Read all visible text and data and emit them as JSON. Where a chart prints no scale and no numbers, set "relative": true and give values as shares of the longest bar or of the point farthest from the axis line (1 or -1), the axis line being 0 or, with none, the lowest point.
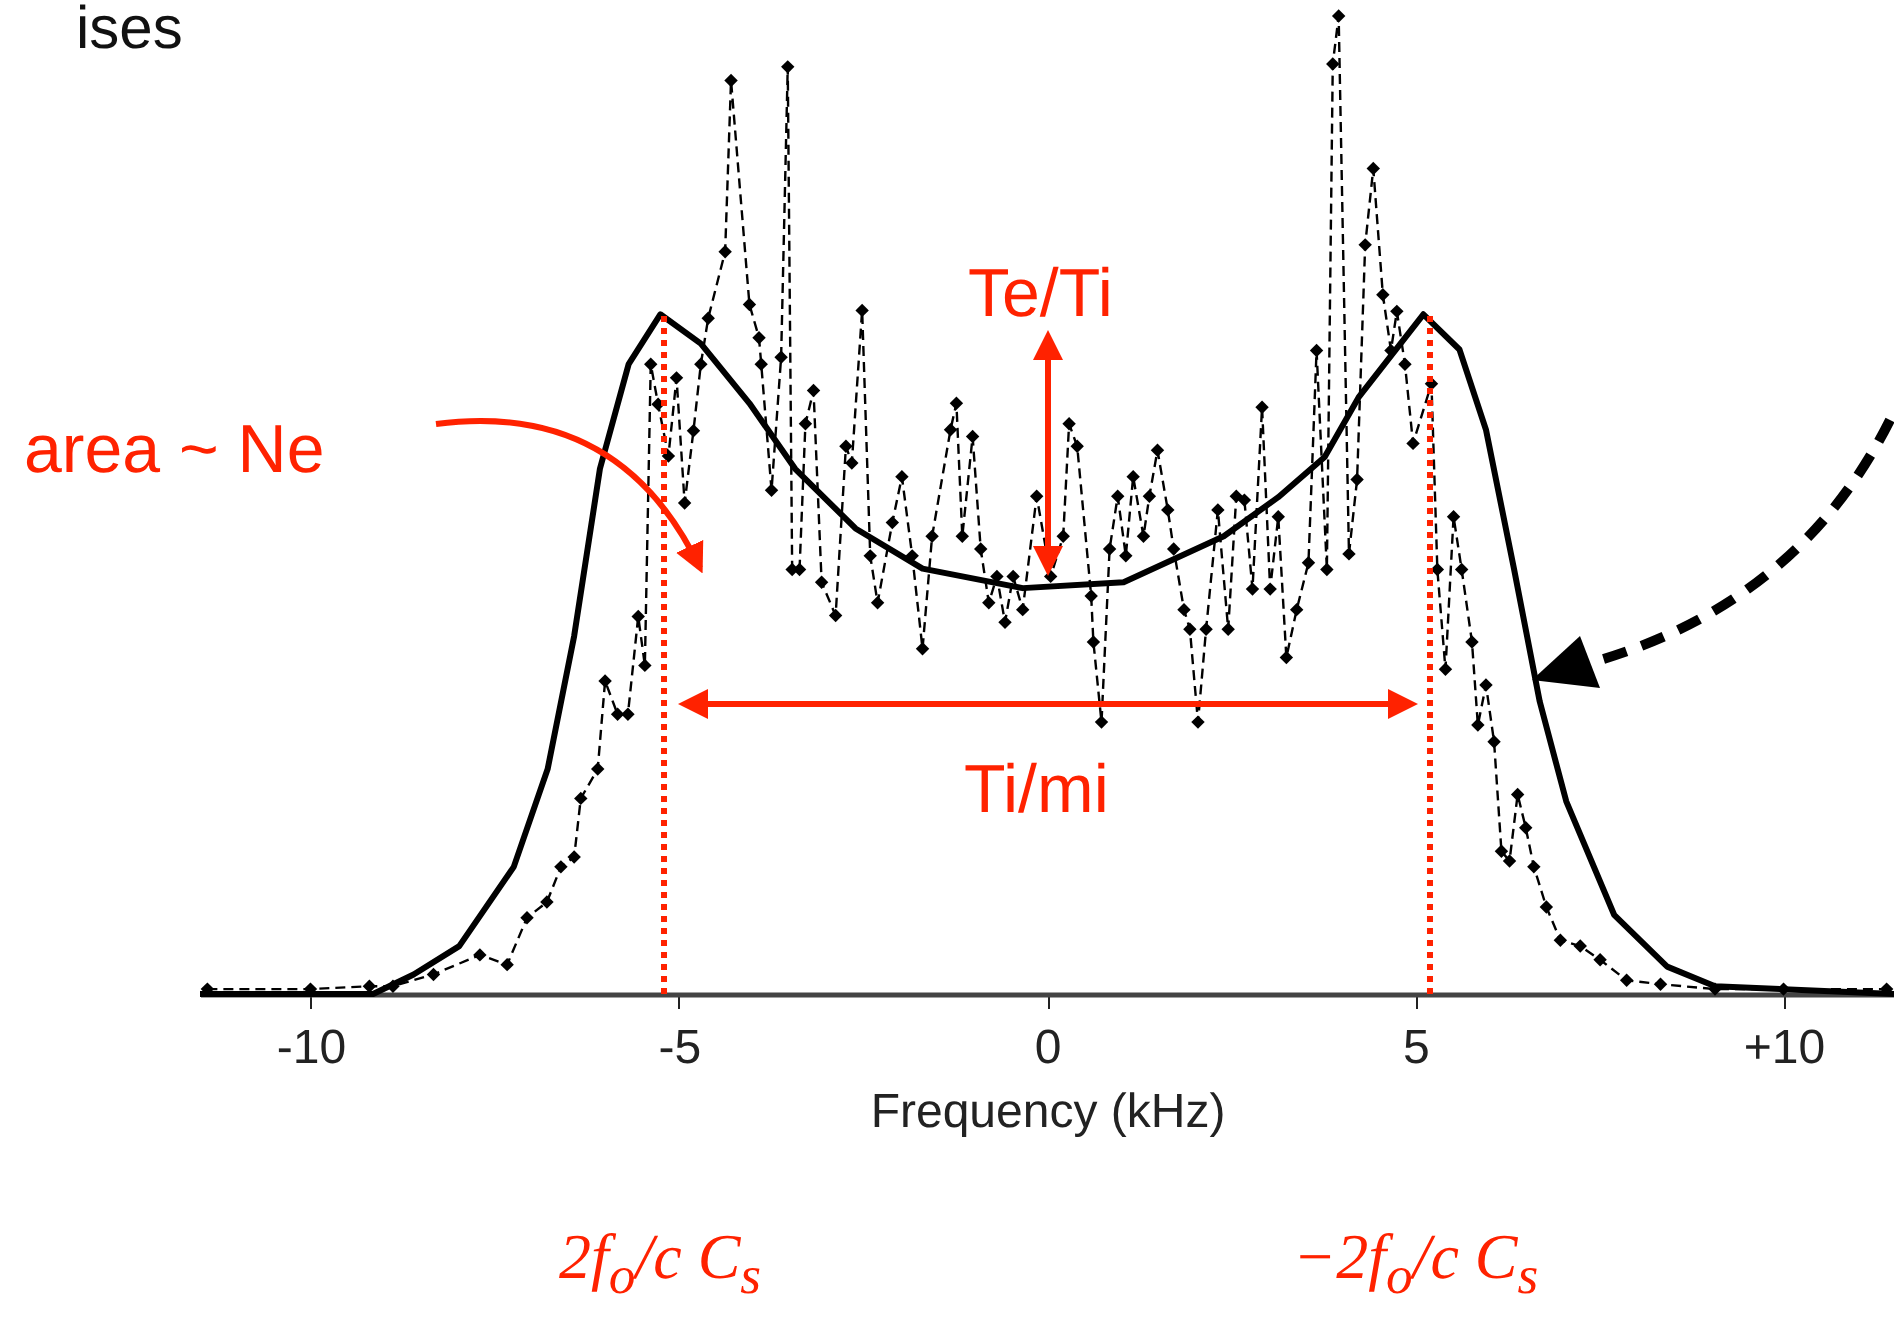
{
  "chart_data": {
    "type": "line",
    "xlabel": "Frequency (kHz)",
    "relative": true,
    "xlim": [
      -11.5,
      11.5
    ],
    "xticks": [
      -10,
      -5,
      0,
      5,
      {
        "value": 10,
        "label": "+10"
      }
    ],
    "tick_labels": "x",
    "grid": false,
    "series": [
      {
        "color": "#000000",
        "marker": "none",
        "line_style": "solid",
        "x": [
          -11.5,
          -9.15,
          -8.6,
          -7.98,
          -7.24,
          -6.78,
          -6.42,
          -6.07,
          -5.68,
          -5.25,
          -4.7,
          -4.04,
          -3.42,
          -2.6,
          -1.69,
          -0.33,
          1.04,
          2.4,
          3.14,
          3.77,
          4.23,
          5.11,
          5.6,
          5.96,
          6.34,
          6.69,
          7.05,
          7.7,
          8.42,
          9.07,
          11.5
        ],
        "values": [
          0,
          0,
          0.02,
          0.049,
          0.13,
          0.23,
          0.366,
          0.537,
          0.644,
          0.695,
          0.665,
          0.604,
          0.537,
          0.476,
          0.435,
          0.415,
          0.421,
          0.468,
          0.508,
          0.549,
          0.61,
          0.695,
          0.659,
          0.577,
          0.435,
          0.299,
          0.197,
          0.081,
          0.028,
          0.008,
          0
        ]
      },
      {
        "color": "#000000",
        "marker": "diamond",
        "line_style": "dashed",
        "x": [
          -11.4,
          -10,
          -9.2,
          -8.88,
          -8.33,
          -7.7,
          -7.33,
          -7.06,
          -6.79,
          -6.6,
          -6.42,
          -6.33,
          -6.1,
          -6.0,
          -5.83,
          -5.69,
          -5.55,
          -5.46,
          -5.38,
          -5.28,
          -5.14,
          -5.03,
          -4.92,
          -4.8,
          -4.7,
          -4.6,
          -4.37,
          -4.29,
          -4.04,
          -3.91,
          -3.88,
          -3.74,
          -3.61,
          -3.52,
          -3.46,
          -3.36,
          -3.28,
          -3.17,
          -3.06,
          -2.87,
          -2.73,
          -2.65,
          -2.51,
          -2.4,
          -2.3,
          -2.1,
          -1.97,
          -1.83,
          -1.69,
          -1.56,
          -1.31,
          -1.23,
          -1.15,
          -1.01,
          -0.9,
          -0.79,
          -0.68,
          -0.57,
          -0.46,
          -0.33,
          -0.14,
          0.05,
          0.22,
          0.3,
          0.41,
          0.6,
          0.63,
          0.74,
          0.85,
          0.96,
          1.07,
          1.17,
          1.31,
          1.39,
          1.5,
          1.64,
          1.72,
          1.86,
          1.94,
          2.05,
          2.16,
          2.32,
          2.46,
          2.57,
          2.68,
          2.79,
          2.92,
          3.03,
          3.14,
          3.25,
          3.39,
          3.55,
          3.66,
          3.8,
          3.88,
          3.96,
          4.1,
          4.21,
          4.32,
          4.43,
          4.56,
          4.67,
          4.75,
          4.86,
          4.97,
          5.22,
          5.3,
          5.41,
          5.52,
          5.63,
          5.77,
          5.85,
          5.96,
          6.07,
          6.17,
          6.28,
          6.39,
          6.5,
          6.61,
          6.78,
          6.97,
          7.24,
          7.51,
          7.87,
          8.33,
          9.07,
          10,
          11.4
        ],
        "values": [
          0.005,
          0.005,
          0.008,
          0.008,
          0.02,
          0.04,
          0.03,
          0.078,
          0.094,
          0.13,
          0.14,
          0.2,
          0.23,
          0.32,
          0.286,
          0.286,
          0.386,
          0.336,
          0.644,
          0.603,
          0.55,
          0.63,
          0.502,
          0.576,
          0.644,
          0.691,
          0.759,
          0.934,
          0.705,
          0.671,
          0.644,
          0.515,
          0.651,
          0.948,
          0.434,
          0.434,
          0.583,
          0.617,
          0.421,
          0.387,
          0.56,
          0.543,
          0.699,
          0.448,
          0.4,
          0.482,
          0.529,
          0.448,
          0.353,
          0.468,
          0.577,
          0.604,
          0.468,
          0.57,
          0.455,
          0.4,
          0.427,
          0.38,
          0.427,
          0.393,
          0.509,
          0.427,
          0.468,
          0.583,
          0.56,
          0.407,
          0.36,
          0.278,
          0.455,
          0.509,
          0.448,
          0.529,
          0.468,
          0.509,
          0.556,
          0.495,
          0.455,
          0.393,
          0.373,
          0.278,
          0.373,
          0.495,
          0.373,
          0.509,
          0.505,
          0.414,
          0.6,
          0.414,
          0.488,
          0.344,
          0.393,
          0.441,
          0.658,
          0.434,
          0.951,
          1.0,
          0.45,
          0.526,
          0.766,
          0.844,
          0.715,
          0.658,
          0.698,
          0.644,
          0.563,
          0.624,
          0.434,
          0.332,
          0.488,
          0.434,
          0.36,
          0.275,
          0.316,
          0.258,
          0.146,
          0.136,
          0.204,
          0.17,
          0.13,
          0.089,
          0.055,
          0.049,
          0.035,
          0.014,
          0.01,
          0.005,
          0.005,
          0.005
        ]
      }
    ],
    "ref_lines": [
      {
        "axis": "x",
        "value": -5.2,
        "color": "#ff2200",
        "line_style": "dotted"
      },
      {
        "axis": "x",
        "value": 5.2,
        "color": "#ff2200",
        "line_style": "dotted"
      }
    ],
    "annotations": [
      "ises",
      "Te/Ti",
      "area ~ Ne",
      "Ti/mi",
      "2f$_{o}$/c C$_{s}$",
      "−2f$_{o}$/c C$_{s}$"
    ]
  }
}
